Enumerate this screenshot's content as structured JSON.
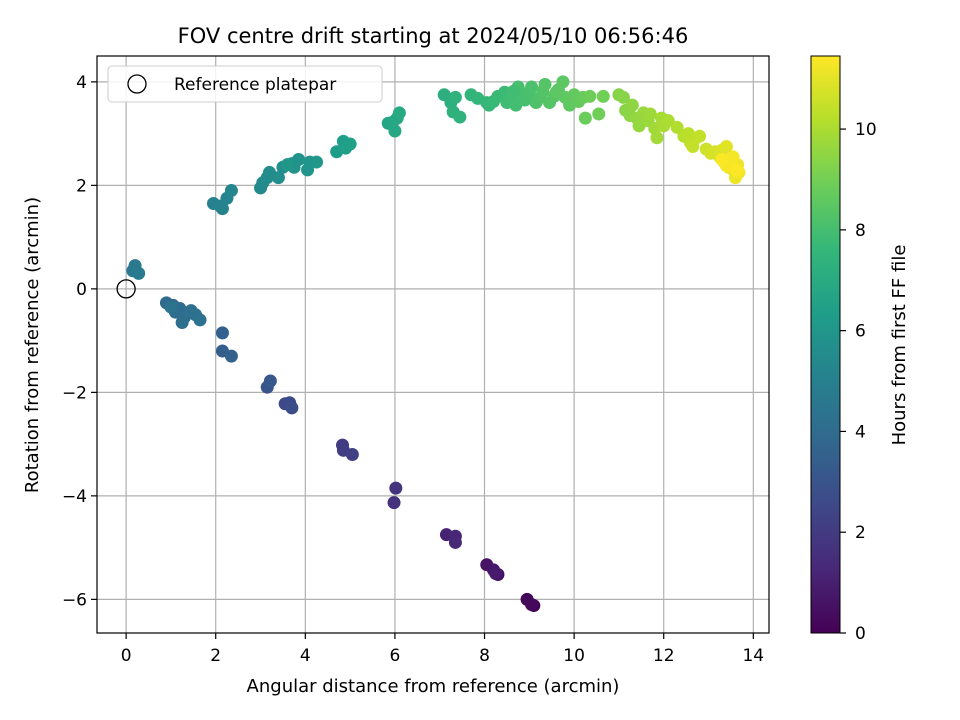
{
  "chart_data": {
    "type": "scatter",
    "title": "FOV centre drift starting at 2024/05/10 06:56:46",
    "xlabel": "Angular distance from reference (arcmin)",
    "ylabel": "Rotation from reference (arcmin)",
    "xlim": [
      -0.65,
      14.35
    ],
    "ylim": [
      -6.65,
      4.5
    ],
    "xticks": [
      0,
      2,
      4,
      6,
      8,
      10,
      12,
      14
    ],
    "yticks": [
      -6,
      -4,
      -2,
      0,
      2,
      4
    ],
    "grid": true,
    "legend": {
      "placement": "top-left",
      "label": "Reference platepar"
    },
    "reference_point": {
      "x": 0,
      "y": 0
    },
    "colorbar": {
      "label": "Hours from first FF file",
      "range": [
        0,
        11.45
      ],
      "ticks": [
        0,
        2,
        4,
        6,
        8,
        10
      ],
      "colormap": [
        "#440154",
        "#482878",
        "#3e4989",
        "#31688e",
        "#26828e",
        "#1f9e89",
        "#35b779",
        "#6ece58",
        "#b5de2b",
        "#fde725"
      ]
    },
    "points": [
      [
        9.1,
        -6.12,
        0.05
      ],
      [
        8.95,
        -6.0,
        0.15
      ],
      [
        9.05,
        -6.1,
        0.25
      ],
      [
        8.3,
        -5.52,
        0.5
      ],
      [
        8.05,
        -5.33,
        0.6
      ],
      [
        8.2,
        -5.43,
        0.7
      ],
      [
        8.25,
        -5.5,
        0.8
      ],
      [
        7.15,
        -4.75,
        1.1
      ],
      [
        7.35,
        -4.78,
        1.2
      ],
      [
        7.35,
        -4.9,
        1.3
      ],
      [
        5.98,
        -4.13,
        1.6
      ],
      [
        6.02,
        -3.85,
        1.7
      ],
      [
        4.83,
        -3.02,
        2.0
      ],
      [
        4.85,
        -3.12,
        2.1
      ],
      [
        5.05,
        -3.2,
        2.2
      ],
      [
        3.55,
        -2.22,
        2.5
      ],
      [
        3.65,
        -2.2,
        2.6
      ],
      [
        3.7,
        -2.3,
        2.7
      ],
      [
        3.15,
        -1.9,
        3.0
      ],
      [
        3.22,
        -1.78,
        3.1
      ],
      [
        2.15,
        -1.2,
        3.4
      ],
      [
        2.15,
        -0.85,
        3.5
      ],
      [
        2.35,
        -1.3,
        3.6
      ],
      [
        0.9,
        -0.27,
        3.9
      ],
      [
        1.05,
        -0.32,
        3.95
      ],
      [
        1.1,
        -0.45,
        4.0
      ],
      [
        1.2,
        -0.38,
        4.05
      ],
      [
        1.3,
        -0.55,
        4.1
      ],
      [
        1.25,
        -0.65,
        4.15
      ],
      [
        1.45,
        -0.42,
        4.2
      ],
      [
        1.55,
        -0.5,
        4.25
      ],
      [
        1.65,
        -0.6,
        4.3
      ],
      [
        1.0,
        -0.35,
        4.35
      ],
      [
        0.15,
        0.35,
        4.6
      ],
      [
        0.2,
        0.45,
        4.65
      ],
      [
        0.28,
        0.3,
        4.7
      ],
      [
        1.95,
        1.65,
        5.0
      ],
      [
        2.1,
        1.6,
        5.1
      ],
      [
        2.15,
        1.55,
        5.15
      ],
      [
        2.25,
        1.75,
        5.2
      ],
      [
        2.35,
        1.9,
        5.25
      ],
      [
        3.0,
        1.95,
        5.4
      ],
      [
        3.05,
        2.05,
        5.5
      ],
      [
        3.15,
        2.15,
        5.55
      ],
      [
        3.2,
        2.25,
        5.6
      ],
      [
        3.4,
        2.15,
        5.65
      ],
      [
        3.5,
        2.35,
        5.7
      ],
      [
        3.7,
        2.42,
        5.75
      ],
      [
        3.75,
        2.35,
        5.8
      ],
      [
        3.85,
        2.5,
        5.85
      ],
      [
        4.05,
        2.3,
        5.9
      ],
      [
        4.1,
        2.45,
        5.95
      ],
      [
        4.25,
        2.45,
        6.0
      ],
      [
        3.6,
        2.4,
        6.05
      ],
      [
        4.7,
        2.65,
        6.3
      ],
      [
        4.85,
        2.85,
        6.35
      ],
      [
        4.9,
        2.72,
        6.4
      ],
      [
        5.0,
        2.8,
        6.45
      ],
      [
        5.85,
        3.2,
        6.7
      ],
      [
        5.95,
        3.22,
        6.75
      ],
      [
        6.0,
        3.05,
        6.8
      ],
      [
        6.05,
        3.3,
        6.85
      ],
      [
        6.1,
        3.4,
        6.9
      ],
      [
        7.1,
        3.75,
        7.2
      ],
      [
        7.25,
        3.6,
        7.25
      ],
      [
        7.3,
        3.42,
        7.3
      ],
      [
        7.35,
        3.7,
        7.35
      ],
      [
        7.45,
        3.32,
        7.4
      ],
      [
        7.7,
        3.75,
        7.5
      ],
      [
        7.85,
        3.68,
        7.55
      ],
      [
        8.05,
        3.6,
        7.6
      ],
      [
        8.1,
        3.55,
        7.65
      ],
      [
        8.2,
        3.62,
        7.7
      ],
      [
        8.3,
        3.72,
        7.75
      ],
      [
        8.45,
        3.8,
        7.8
      ],
      [
        8.5,
        3.6,
        7.85
      ],
      [
        8.6,
        3.7,
        7.9
      ],
      [
        8.7,
        3.55,
        7.95
      ],
      [
        8.8,
        3.75,
        8.0
      ],
      [
        8.9,
        3.65,
        8.05
      ],
      [
        9.0,
        3.8,
        8.1
      ],
      [
        9.05,
        3.9,
        8.15
      ],
      [
        9.15,
        3.6,
        8.2
      ],
      [
        9.25,
        3.7,
        8.25
      ],
      [
        9.3,
        3.82,
        8.3
      ],
      [
        9.45,
        3.6,
        8.35
      ],
      [
        9.55,
        3.72,
        8.4
      ],
      [
        9.65,
        3.85,
        8.45
      ],
      [
        9.75,
        4.0,
        8.5
      ],
      [
        9.8,
        3.7,
        8.55
      ],
      [
        9.9,
        3.55,
        8.6
      ],
      [
        10.0,
        3.75,
        8.65
      ],
      [
        10.1,
        3.62,
        8.7
      ],
      [
        10.2,
        3.7,
        8.75
      ],
      [
        10.25,
        3.3,
        8.8
      ],
      [
        10.35,
        3.72,
        8.85
      ],
      [
        10.55,
        3.38,
        8.9
      ],
      [
        10.65,
        3.72,
        8.95
      ],
      [
        8.75,
        3.9,
        8.05
      ],
      [
        9.35,
        3.95,
        8.35
      ],
      [
        9.6,
        3.8,
        8.5
      ],
      [
        8.65,
        3.82,
        7.9
      ],
      [
        11.0,
        3.75,
        9.3
      ],
      [
        11.1,
        3.7,
        9.35
      ],
      [
        11.15,
        3.45,
        9.4
      ],
      [
        11.25,
        3.35,
        9.45
      ],
      [
        11.3,
        3.55,
        9.5
      ],
      [
        11.4,
        3.3,
        9.55
      ],
      [
        11.45,
        3.15,
        9.6
      ],
      [
        11.55,
        3.4,
        9.65
      ],
      [
        11.65,
        3.25,
        9.7
      ],
      [
        11.7,
        3.38,
        9.75
      ],
      [
        11.8,
        3.1,
        9.8
      ],
      [
        11.85,
        2.92,
        9.85
      ],
      [
        11.95,
        3.3,
        9.9
      ],
      [
        12.0,
        3.15,
        9.95
      ],
      [
        12.1,
        3.25,
        10.0
      ],
      [
        12.3,
        3.12,
        10.1
      ],
      [
        12.45,
        2.95,
        10.2
      ],
      [
        12.55,
        3.0,
        10.25
      ],
      [
        12.6,
        2.82,
        10.3
      ],
      [
        12.7,
        2.9,
        10.35
      ],
      [
        12.8,
        2.95,
        10.4
      ],
      [
        12.65,
        2.75,
        10.45
      ],
      [
        12.95,
        2.7,
        10.6
      ],
      [
        13.05,
        2.62,
        10.7
      ],
      [
        13.15,
        2.65,
        10.75
      ],
      [
        13.25,
        2.55,
        10.8
      ],
      [
        13.3,
        2.68,
        10.85
      ],
      [
        13.35,
        2.45,
        10.9
      ],
      [
        13.4,
        2.75,
        10.95
      ],
      [
        13.45,
        2.35,
        11.0
      ],
      [
        13.5,
        2.5,
        11.05
      ],
      [
        13.55,
        2.3,
        11.1
      ],
      [
        13.6,
        2.15,
        11.15
      ],
      [
        13.65,
        2.4,
        11.2
      ],
      [
        13.68,
        2.25,
        11.25
      ],
      [
        13.55,
        2.55,
        11.3
      ],
      [
        13.4,
        2.38,
        11.35
      ],
      [
        13.3,
        2.5,
        11.4
      ],
      [
        13.62,
        2.3,
        11.42
      ]
    ]
  }
}
